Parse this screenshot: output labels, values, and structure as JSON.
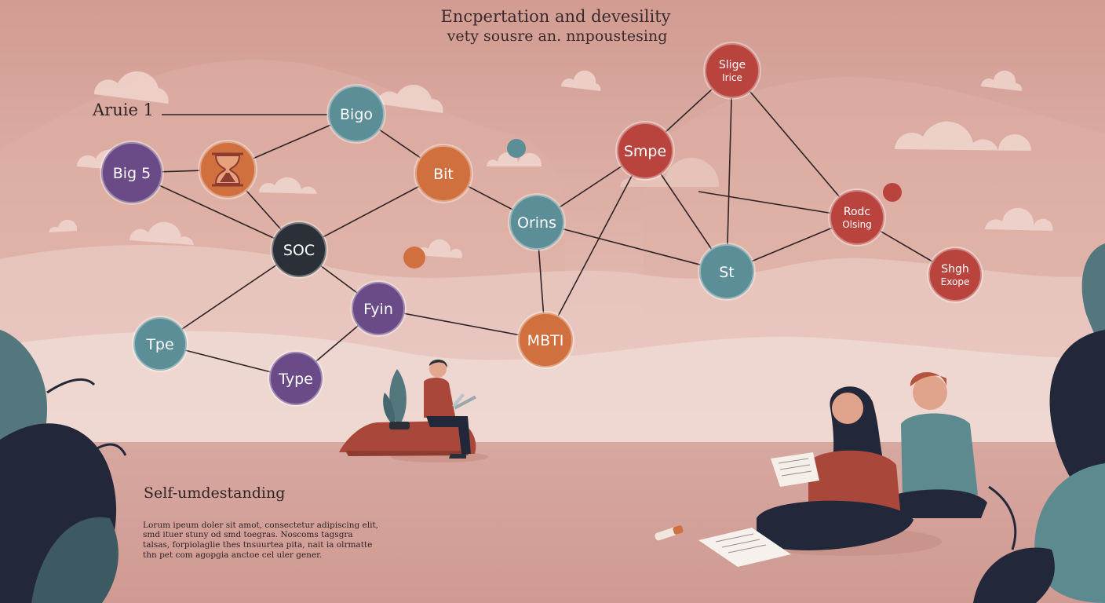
{
  "title": {
    "line1": "Encpertation and devesility",
    "line2": "vety sousre an. nnpoustesing"
  },
  "left_label": "Aruie 1",
  "section_heading": "Self-umdestanding",
  "body_text": [
    "Lorum ipeum doler sit amot, consectetur adipiscing elit,",
    "smd ituer stuny od smd toegras. Noscoms tagsgra",
    "talsas, forpiolaglie thes tnsuurtea pita, nait ia olrmatte",
    "thn pet com agopgia anctoe cel uler gener."
  ],
  "colors": {
    "purple": "#6b4a88",
    "orange": "#d1703f",
    "teal": "#5b8e97",
    "dark": "#2b3038",
    "red": "#b9443e"
  },
  "nodes": [
    {
      "id": "big5",
      "lines": [
        "Big 5"
      ],
      "color": "purple"
    },
    {
      "id": "hourglass",
      "lines": [],
      "color": "orange",
      "icon": "hourglass-icon"
    },
    {
      "id": "bigo",
      "lines": [
        "Bigo"
      ],
      "color": "teal"
    },
    {
      "id": "bit",
      "lines": [
        "Bit"
      ],
      "color": "orange"
    },
    {
      "id": "soc",
      "lines": [
        "SOC"
      ],
      "color": "dark"
    },
    {
      "id": "fyin",
      "lines": [
        "Fyin"
      ],
      "color": "purple"
    },
    {
      "id": "tpe",
      "lines": [
        "Tpe"
      ],
      "color": "teal"
    },
    {
      "id": "type",
      "lines": [
        "Type"
      ],
      "color": "purple"
    },
    {
      "id": "orins",
      "lines": [
        "Orins"
      ],
      "color": "teal"
    },
    {
      "id": "mbti",
      "lines": [
        "MBTI"
      ],
      "color": "orange"
    },
    {
      "id": "smpe",
      "lines": [
        "Smpe"
      ],
      "color": "red"
    },
    {
      "id": "slige",
      "lines": [
        "Slige",
        "Irice"
      ],
      "color": "red"
    },
    {
      "id": "st",
      "lines": [
        "St"
      ],
      "color": "teal"
    },
    {
      "id": "rodc",
      "lines": [
        "Rodc",
        "Olsing"
      ],
      "color": "red"
    },
    {
      "id": "shgh",
      "lines": [
        "Shgh",
        "Exope"
      ],
      "color": "red"
    },
    {
      "id": "dot-teal",
      "lines": [],
      "color": "teal"
    },
    {
      "id": "dot-orange",
      "lines": [],
      "color": "orange"
    },
    {
      "id": "dot-red",
      "lines": [],
      "color": "red"
    }
  ],
  "edges": [
    [
      "big5",
      "hourglass"
    ],
    [
      "big5",
      "soc"
    ],
    [
      "hourglass",
      "bigo"
    ],
    [
      "hourglass",
      "soc"
    ],
    [
      "bigo",
      "bit"
    ],
    [
      "bit",
      "soc"
    ],
    [
      "bit",
      "orins"
    ],
    [
      "soc",
      "fyin"
    ],
    [
      "soc",
      "tpe"
    ],
    [
      "tpe",
      "type"
    ],
    [
      "type",
      "fyin"
    ],
    [
      "fyin",
      "mbti"
    ],
    [
      "orins",
      "mbti"
    ],
    [
      "orins",
      "smpe"
    ],
    [
      "orins",
      "st"
    ],
    [
      "smpe",
      "mbti"
    ],
    [
      "smpe",
      "slige"
    ],
    [
      "smpe",
      "st"
    ],
    [
      "slige",
      "st"
    ],
    [
      "slige",
      "rodc"
    ],
    [
      "st",
      "rodc"
    ],
    [
      "rodc",
      "shgh"
    ]
  ]
}
